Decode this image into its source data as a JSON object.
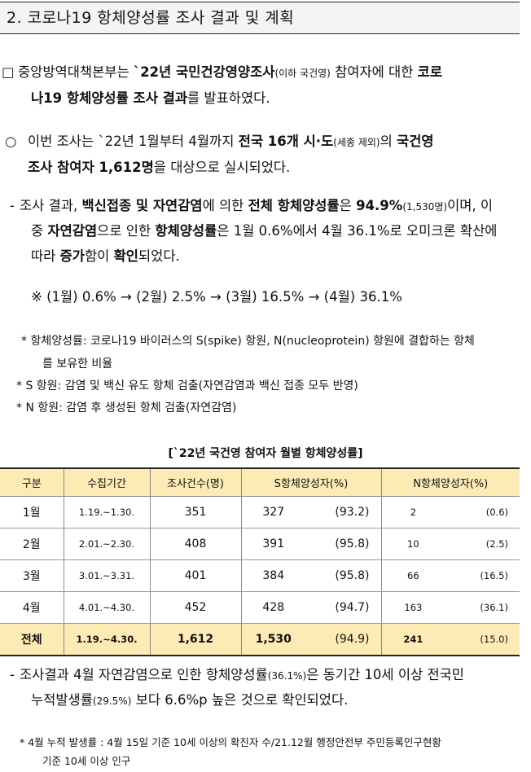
{
  "section_title": "2. 코로나19 항체양성률 조사 결과 및 계획",
  "p1": {
    "bullet": "□",
    "s1": "중앙방역대책본부는 ",
    "b1": "`22년 국민건강영양조사",
    "sm1": "(이하 국건영)",
    "s2": " 참여자에 대한 ",
    "b2": "코로",
    "b3": "나19 항체양성률 조사 결과",
    "s3": "를 발표하였다."
  },
  "p2": {
    "bullet": "○",
    "s1": "이번 조사는 `22년 1월부터 4월까지 ",
    "b1": "전국 16개 시·도",
    "sm1": "(세종 제외)",
    "s2": "의 ",
    "b2": "국건영",
    "b3": "조사 참여자 1,612명",
    "s3": "을 대상으로 실시되었다."
  },
  "p3": {
    "bullet": "-",
    "s1": "조사 결과, ",
    "b1": "백신접종 및 자연감염",
    "s2": "에 의한 ",
    "b2": "전체 항체양성률",
    "s3": "은 ",
    "b3": "94.9%",
    "sm1": "(1,530명)",
    "s4": "이며, 이",
    "s5": "중 ",
    "b4": "자연감염",
    "s6": "으로 인한 ",
    "b5": "항체양성률",
    "s7": "은 1월 0.6%에서 4월 36.1%로 오미크론 확산에",
    "s8": "따라 ",
    "b6": "증가",
    "s9": "함이 ",
    "b7": "확인",
    "s10": "되었다."
  },
  "trend": "※ (1월) 0.6% → (2월) 2.5% → (3월) 16.5% → (4월) 36.1%",
  "notes": {
    "n1a": "* 항체양성률: 코로나19 바이러스의 S(spike) 항원, N(nucleoprotein) 항원에 결합하는 항체",
    "n1b": "를 보유한 비율",
    "n2": "* S 항원: 감염 및 백신 유도 항체 검출(자연감염과 백신 접종 모두 반영)",
    "n3": "* N 항원: 감염 후 생성된 항체 검출(자연감염)"
  },
  "table": {
    "title": "[`22년 국건영 참여자 월별 항체양성률]",
    "headers": [
      "구분",
      "수집기간",
      "조사건수(명)",
      "S항체양성자(%)",
      "N항체양성자(%)"
    ],
    "rows": [
      {
        "month": "1월",
        "period": "1.19.~1.30.",
        "count": "351",
        "s_n": "327",
        "s_p": "(93.2)",
        "n_n": "2",
        "n_p": "(0.6)"
      },
      {
        "month": "2월",
        "period": "2.01.~2.30.",
        "count": "408",
        "s_n": "391",
        "s_p": "(95.8)",
        "n_n": "10",
        "n_p": "(2.5)"
      },
      {
        "month": "3월",
        "period": "3.01.~3.31.",
        "count": "401",
        "s_n": "384",
        "s_p": "(95.8)",
        "n_n": "66",
        "n_p": "(16.5)"
      },
      {
        "month": "4월",
        "period": "4.01.~4.30.",
        "count": "452",
        "s_n": "428",
        "s_p": "(94.7)",
        "n_n": "163",
        "n_p": "(36.1)"
      }
    ],
    "total": {
      "month": "전체",
      "period": "1.19.~4.30.",
      "count": "1,612",
      "s_n": "1,530",
      "s_p": "(94.9)",
      "n_n": "241",
      "n_p": "(15.0)"
    }
  },
  "p4": {
    "bullet": "-",
    "s1": "조사결과 4월 자연감염으로 인한 항체양성률",
    "sm1": "(36.1%)",
    "s2": "은 동기간 10세 이상 전국민",
    "s3": "누적발생률",
    "sm2": "(29.5%)",
    "s4": " 보다 6.6%p 높은 것으로 확인되었다."
  },
  "footnote": {
    "a": "* 4월 누적 발생률 : 4월 15일 기준 10세 이상의 확진자 수/21.12월 행정안전부 주민등록인구현황",
    "b": "기준 10세 이상 인구"
  }
}
